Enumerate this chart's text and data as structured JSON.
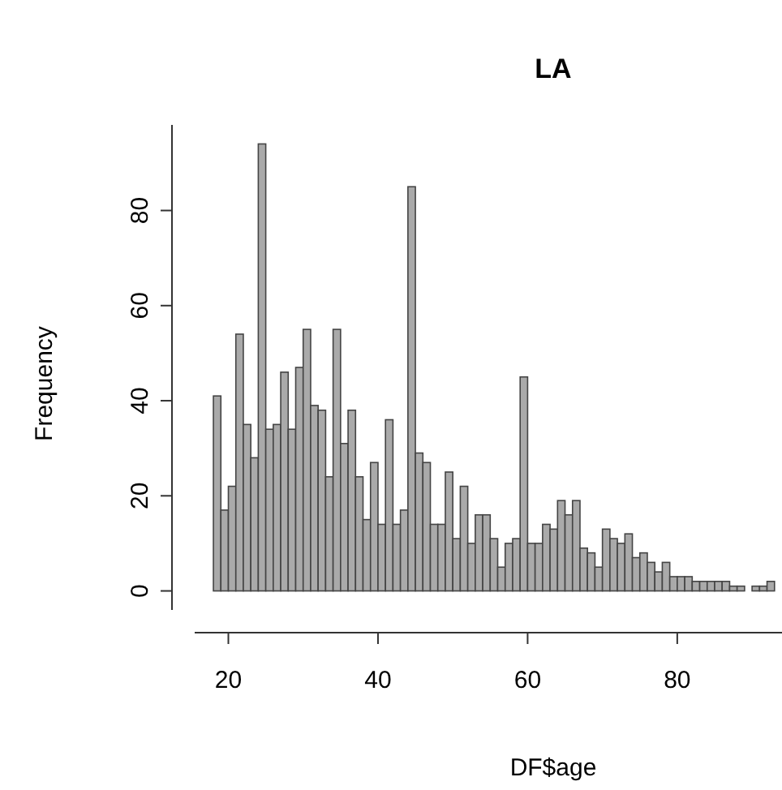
{
  "chart_data": {
    "type": "histogram",
    "title": "LA",
    "xlabel": "DF$age",
    "ylabel": "Frequency",
    "bins": [
      18,
      19,
      20,
      21,
      22,
      23,
      24,
      25,
      26,
      27,
      28,
      29,
      30,
      31,
      32,
      33,
      34,
      35,
      36,
      37,
      38,
      39,
      40,
      41,
      42,
      43,
      44,
      45,
      46,
      47,
      48,
      49,
      50,
      51,
      52,
      53,
      54,
      55,
      56,
      57,
      58,
      59,
      60,
      61,
      62,
      63,
      64,
      65,
      66,
      67,
      68,
      69,
      70,
      71,
      72,
      73,
      74,
      75,
      76,
      77,
      78,
      79,
      80,
      81,
      82,
      83,
      84,
      85,
      86,
      87,
      88,
      89,
      90,
      91,
      92,
      93
    ],
    "values": [
      41,
      17,
      22,
      54,
      35,
      28,
      94,
      34,
      35,
      46,
      34,
      47,
      55,
      39,
      38,
      24,
      55,
      31,
      38,
      24,
      15,
      27,
      14,
      36,
      14,
      17,
      85,
      29,
      27,
      14,
      14,
      25,
      11,
      22,
      10,
      16,
      16,
      11,
      5,
      10,
      11,
      45,
      10,
      10,
      14,
      13,
      19,
      16,
      19,
      9,
      8,
      5,
      13,
      11,
      10,
      12,
      7,
      8,
      6,
      4,
      6,
      3,
      3,
      3,
      2,
      2,
      2,
      2,
      2,
      1,
      1,
      0,
      1,
      1,
      2
    ],
    "color": "#aaaaaa",
    "xlim": [
      15.5,
      94
    ],
    "ylim": [
      -4,
      98
    ],
    "xticks": [
      20,
      40,
      60,
      80
    ],
    "yticks": [
      0,
      20,
      40,
      60,
      80
    ]
  }
}
